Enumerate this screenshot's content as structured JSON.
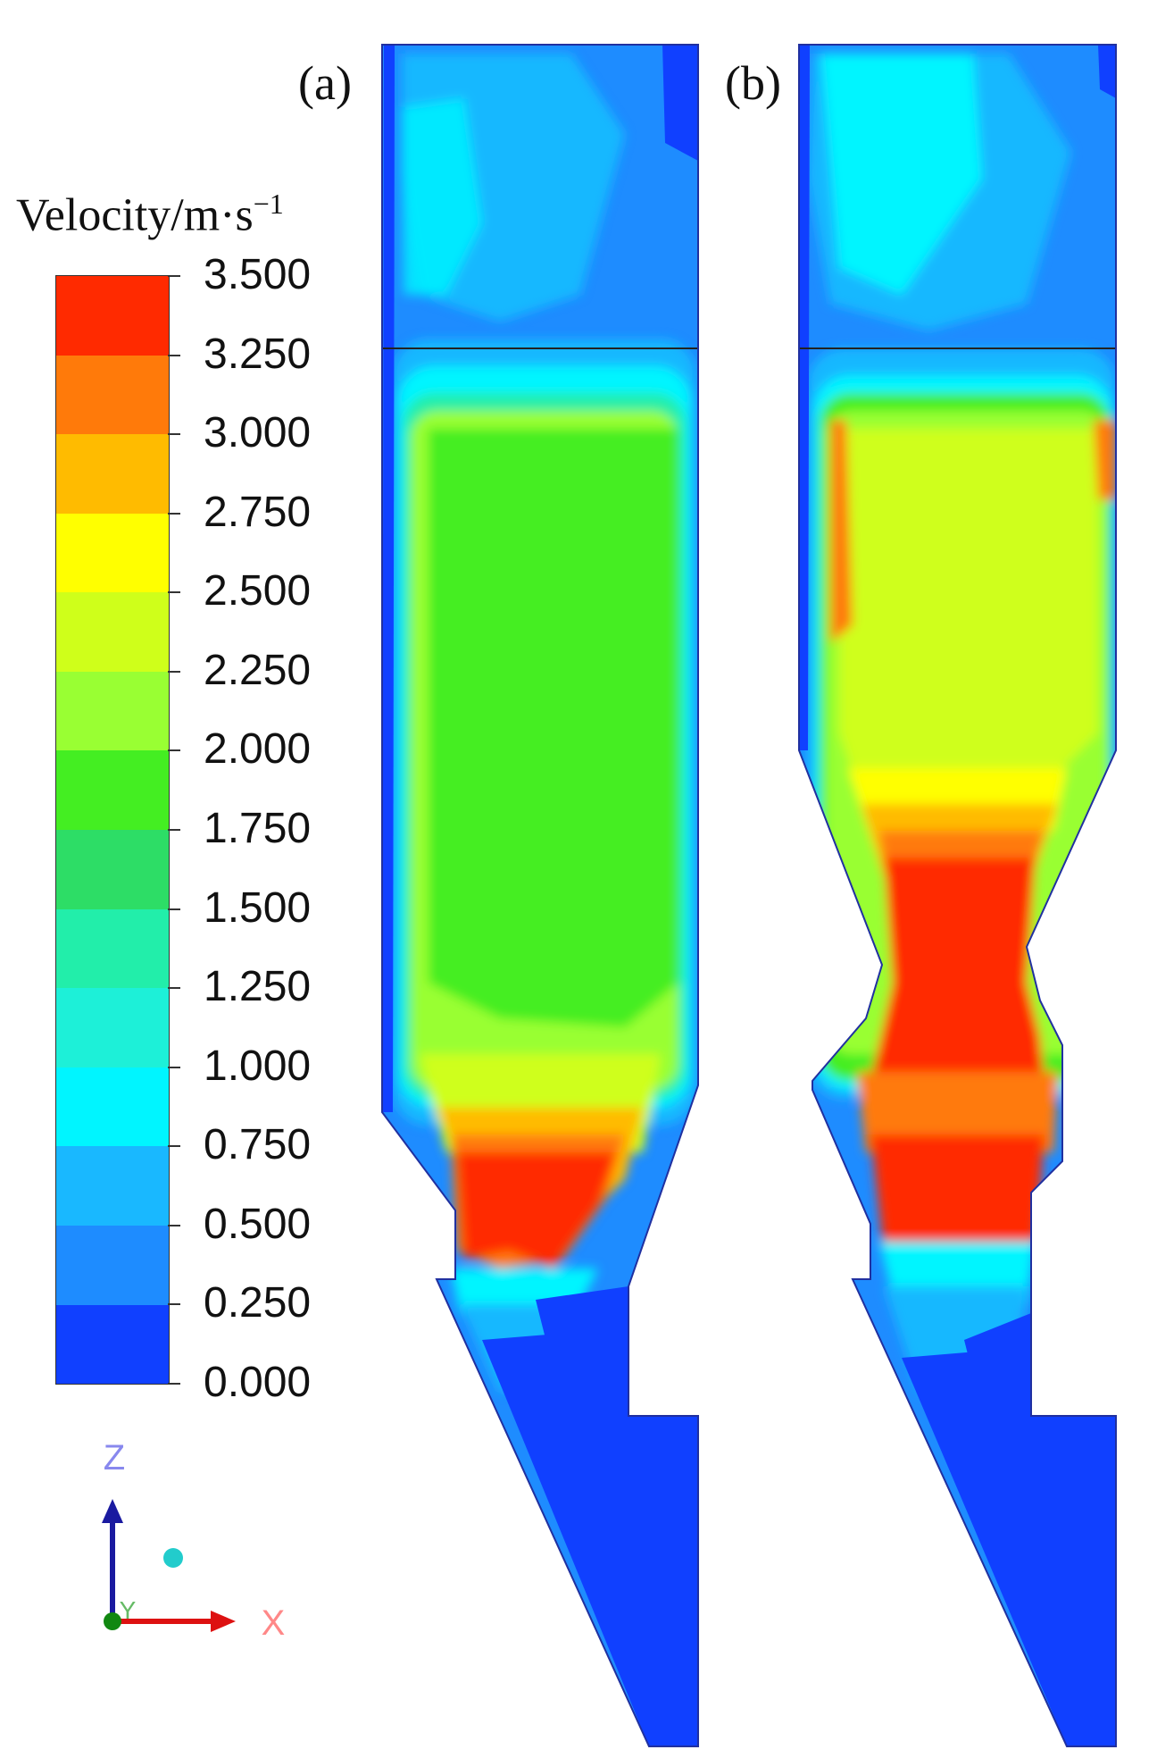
{
  "legend": {
    "title_main": "Velocity/m·s",
    "title_exp": "−1",
    "levels": [
      "3.500",
      "3.250",
      "3.000",
      "2.750",
      "2.500",
      "2.250",
      "2.000",
      "1.750",
      "1.500",
      "1.250",
      "1.000",
      "0.750",
      "0.500",
      "0.250",
      "0.000"
    ],
    "band_colors": [
      "#ff2a00",
      "#ff7a0a",
      "#ffbb00",
      "#ffff00",
      "#cfff1a",
      "#99ff33",
      "#44ee22",
      "#2ddd66",
      "#22eeaa",
      "#1df0d8",
      "#00f5ff",
      "#19b8ff",
      "#1e8cff",
      "#1040ff"
    ]
  },
  "panels": [
    {
      "label": "(a)"
    },
    {
      "label": "(b)"
    }
  ],
  "axes": {
    "z": "Z",
    "x": "X",
    "y": "Y"
  },
  "colors": {
    "dark_blue": "#1040ff",
    "blue": "#1e8cff",
    "light_blue": "#19b8ff",
    "cyan": "#00f5ff",
    "green": "#44ee22",
    "light_green": "#99ff33",
    "yellow_green": "#cfff1a",
    "yellow": "#ffff00",
    "orange": "#ff7a0a",
    "red": "#ff2a00"
  }
}
